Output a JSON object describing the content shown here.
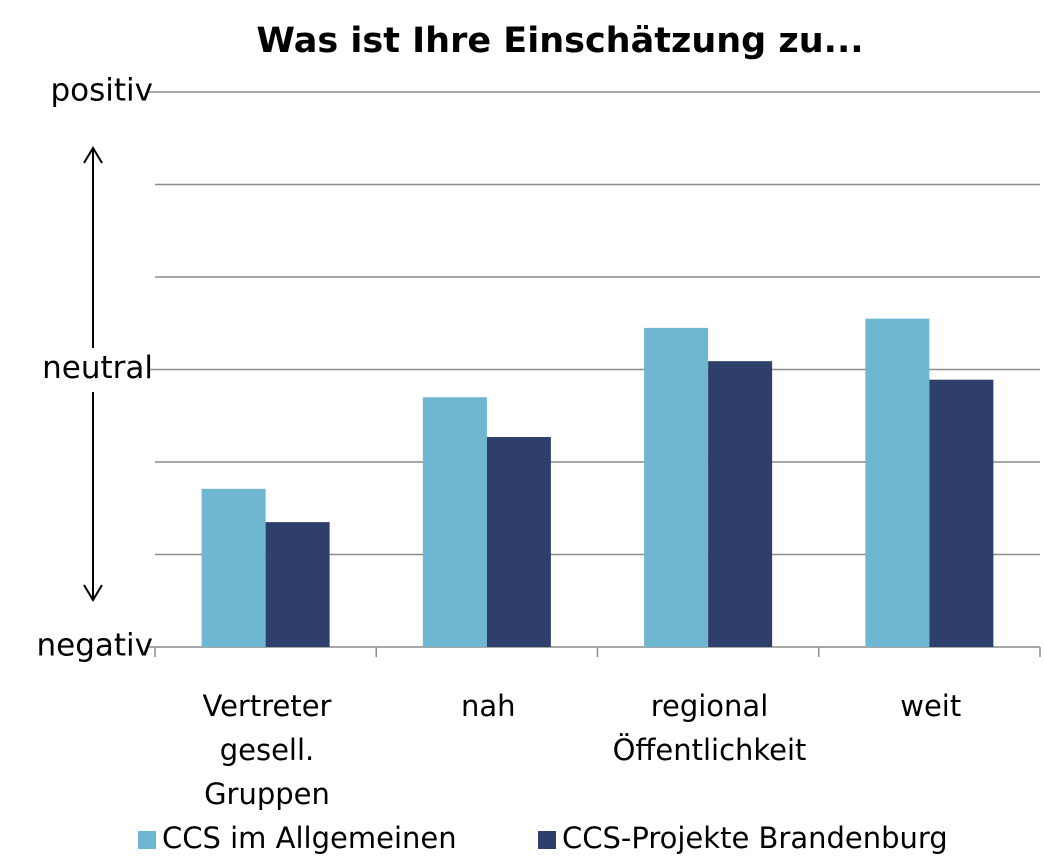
{
  "chart_data": {
    "type": "bar",
    "title": "Was ist Ihre Einschätzung zu...",
    "categories": [
      "Vertreter gesell. Gruppen",
      "nah",
      "regional Öffentlichkeit",
      "weit"
    ],
    "series": [
      {
        "name": "CCS im Allgemeinen",
        "color": "#6fb7d0",
        "values": [
          1.71,
          2.7,
          3.45,
          3.55
        ]
      },
      {
        "name": "CCS-Projekte Brandenburg",
        "color": "#2e3f6b",
        "values": [
          1.35,
          2.27,
          3.09,
          2.89
        ]
      }
    ],
    "ylim": [
      0,
      6
    ],
    "yticks": [
      {
        "value": 0,
        "label": "negativ"
      },
      {
        "value": 3,
        "label": "neutral"
      },
      {
        "value": 6,
        "label": "positiv"
      }
    ],
    "minor_yticks": [
      1,
      2,
      4,
      5
    ],
    "grid": true,
    "legend": "bottom"
  }
}
